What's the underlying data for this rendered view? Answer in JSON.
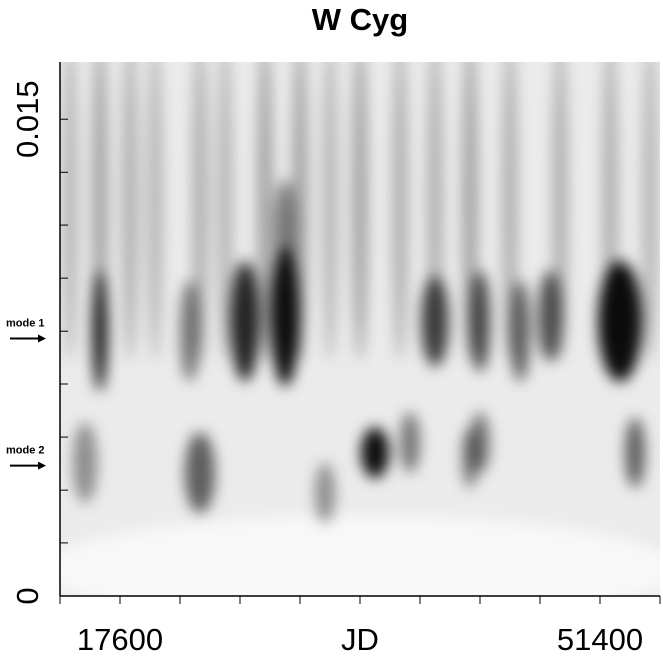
{
  "chart_data": {
    "type": "heatmap",
    "title": "W Cyg",
    "xlabel": "JD",
    "xlim": [
      13375,
      55625
    ],
    "xticks": [
      17600,
      51400
    ],
    "xminor_ticks": [
      13375,
      21825,
      26050,
      30275,
      34500,
      38725,
      42950,
      47175,
      55625
    ],
    "ylim": [
      0,
      0.0168
    ],
    "yticks": [
      0,
      0.015
    ],
    "yminor_ticks": [
      0.00167,
      0.00333,
      0.005,
      0.00667,
      0.00833,
      0.01,
      0.01167,
      0.01333
    ],
    "annotations": [
      {
        "text": "mode 1",
        "y": 0.0081
      },
      {
        "text": "mode 2",
        "y": 0.0041
      }
    ],
    "color": "#000000",
    "background": "#ebebeb",
    "features": [
      {
        "x": 14080,
        "y": 0.0125,
        "sx": 560,
        "sy": 0.0051,
        "level": 0.22
      },
      {
        "x": 16190,
        "y": 0.0125,
        "sx": 560,
        "sy": 0.0051,
        "level": 0.3
      },
      {
        "x": 18300,
        "y": 0.0125,
        "sx": 560,
        "sy": 0.0051,
        "level": 0.25
      },
      {
        "x": 20070,
        "y": 0.0125,
        "sx": 560,
        "sy": 0.0051,
        "level": 0.22
      },
      {
        "x": 23230,
        "y": 0.0125,
        "sx": 560,
        "sy": 0.0051,
        "level": 0.25
      },
      {
        "x": 24990,
        "y": 0.0125,
        "sx": 560,
        "sy": 0.0051,
        "level": 0.22
      },
      {
        "x": 27810,
        "y": 0.0125,
        "sx": 560,
        "sy": 0.0051,
        "level": 0.3
      },
      {
        "x": 30280,
        "y": 0.0125,
        "sx": 560,
        "sy": 0.0051,
        "level": 0.3
      },
      {
        "x": 32390,
        "y": 0.0125,
        "sx": 560,
        "sy": 0.0051,
        "level": 0.22
      },
      {
        "x": 34500,
        "y": 0.0125,
        "sx": 560,
        "sy": 0.0051,
        "level": 0.3
      },
      {
        "x": 37320,
        "y": 0.0125,
        "sx": 560,
        "sy": 0.0051,
        "level": 0.25
      },
      {
        "x": 39780,
        "y": 0.0125,
        "sx": 560,
        "sy": 0.0051,
        "level": 0.25
      },
      {
        "x": 42250,
        "y": 0.0125,
        "sx": 560,
        "sy": 0.0051,
        "level": 0.3
      },
      {
        "x": 45060,
        "y": 0.0125,
        "sx": 560,
        "sy": 0.0051,
        "level": 0.25
      },
      {
        "x": 48590,
        "y": 0.0125,
        "sx": 560,
        "sy": 0.0051,
        "level": 0.25
      },
      {
        "x": 52110,
        "y": 0.0125,
        "sx": 560,
        "sy": 0.0051,
        "level": 0.25
      },
      {
        "x": 54920,
        "y": 0.0125,
        "sx": 560,
        "sy": 0.0051,
        "level": 0.22
      },
      {
        "x": 16190,
        "y": 0.00833,
        "sx": 560,
        "sy": 0.0019,
        "level": 0.85
      },
      {
        "x": 15140,
        "y": 0.0042,
        "sx": 850,
        "sy": 0.00127,
        "level": 0.4
      },
      {
        "x": 22530,
        "y": 0.00833,
        "sx": 700,
        "sy": 0.00159,
        "level": 0.5
      },
      {
        "x": 23230,
        "y": 0.00388,
        "sx": 1060,
        "sy": 0.00127,
        "level": 0.6
      },
      {
        "x": 26400,
        "y": 0.00864,
        "sx": 990,
        "sy": 0.0019,
        "level": 0.85
      },
      {
        "x": 29220,
        "y": 0.0088,
        "sx": 990,
        "sy": 0.0022,
        "level": 0.95
      },
      {
        "x": 29220,
        "y": 0.0115,
        "sx": 700,
        "sy": 0.00159,
        "level": 0.5
      },
      {
        "x": 35560,
        "y": 0.00451,
        "sx": 990,
        "sy": 0.0008,
        "level": 0.95
      },
      {
        "x": 38020,
        "y": 0.00483,
        "sx": 700,
        "sy": 0.00095,
        "level": 0.5
      },
      {
        "x": 39780,
        "y": 0.00864,
        "sx": 990,
        "sy": 0.00143,
        "level": 0.7
      },
      {
        "x": 42950,
        "y": 0.00864,
        "sx": 700,
        "sy": 0.00159,
        "level": 0.7
      },
      {
        "x": 42950,
        "y": 0.00483,
        "sx": 700,
        "sy": 0.00095,
        "level": 0.5
      },
      {
        "x": 45770,
        "y": 0.00833,
        "sx": 700,
        "sy": 0.00159,
        "level": 0.6
      },
      {
        "x": 47880,
        "y": 0.0088,
        "sx": 850,
        "sy": 0.00143,
        "level": 0.65
      },
      {
        "x": 52810,
        "y": 0.00864,
        "sx": 1550,
        "sy": 0.0019,
        "level": 0.95
      },
      {
        "x": 53870,
        "y": 0.00451,
        "sx": 700,
        "sy": 0.0011,
        "level": 0.6
      },
      {
        "x": 32040,
        "y": 0.00324,
        "sx": 700,
        "sy": 0.00095,
        "level": 0.4
      },
      {
        "x": 42250,
        "y": 0.00435,
        "sx": 560,
        "sy": 0.00095,
        "level": 0.5
      }
    ]
  }
}
